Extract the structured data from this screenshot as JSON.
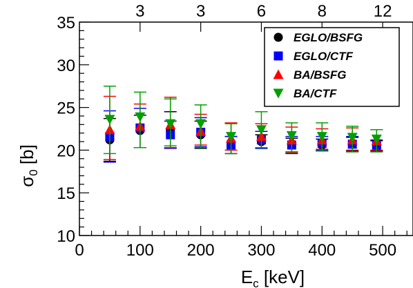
{
  "chart_data": {
    "type": "scatter",
    "title": "",
    "xlabel_main": "E",
    "xlabel_sub": "c",
    "xlabel_unit": " [keV]",
    "ylabel_main": "σ",
    "ylabel_sub": "0",
    "ylabel_unit": " [b]",
    "xlim": [
      0,
      550
    ],
    "ylim": [
      10,
      35
    ],
    "x_ticks": [
      0,
      100,
      200,
      300,
      400,
      500
    ],
    "y_ticks": [
      10,
      15,
      20,
      25,
      30,
      35
    ],
    "top_ticks": [
      {
        "x": 100,
        "label": "3"
      },
      {
        "x": 200,
        "label": "3"
      },
      {
        "x": 300,
        "label": "6"
      },
      {
        "x": 400,
        "label": "8"
      },
      {
        "x": 500,
        "label": "12"
      }
    ],
    "grid": false,
    "legend_position": "top-right",
    "series": [
      {
        "name": "EGLO/BSFG",
        "color": "#000000",
        "marker": "circle",
        "x": [
          50,
          100,
          150,
          200,
          250,
          300,
          350,
          400,
          450,
          490
        ],
        "y": [
          21.2,
          22.3,
          22.3,
          21.8,
          20.6,
          21.0,
          20.6,
          20.6,
          20.7,
          20.5
        ],
        "err_low": [
          2.5,
          2.0,
          2.0,
          1.6,
          1.0,
          0.8,
          0.8,
          0.7,
          0.8,
          0.6
        ],
        "err_high": [
          2.5,
          1.8,
          2.2,
          1.6,
          1.0,
          0.8,
          0.8,
          0.7,
          0.8,
          0.6
        ]
      },
      {
        "name": "EGLO/CTF",
        "color": "#0000ff",
        "marker": "square",
        "x": [
          50,
          100,
          150,
          200,
          250,
          300,
          350,
          400,
          450,
          490
        ],
        "y": [
          21.6,
          22.6,
          21.8,
          22.1,
          20.6,
          21.2,
          20.6,
          20.8,
          20.7,
          20.5
        ],
        "err_low": [
          3.0,
          2.3,
          1.6,
          1.7,
          1.0,
          1.0,
          1.0,
          0.8,
          0.9,
          0.7
        ],
        "err_high": [
          3.0,
          2.3,
          1.6,
          1.7,
          1.0,
          1.0,
          1.0,
          0.8,
          0.9,
          0.7
        ]
      },
      {
        "name": "BA/BSFG",
        "color": "#ff0000",
        "marker": "triangle-up",
        "x": [
          50,
          100,
          150,
          200,
          250,
          300,
          350,
          400,
          450,
          490
        ],
        "y": [
          22.4,
          22.8,
          23.0,
          22.2,
          21.4,
          21.6,
          21.2,
          21.2,
          21.2,
          21.1
        ],
        "err_low": [
          3.5,
          2.5,
          2.7,
          1.6,
          1.4,
          1.3,
          1.5,
          1.1,
          1.2,
          1.1
        ],
        "err_high": [
          3.9,
          2.6,
          3.2,
          2.0,
          1.8,
          1.5,
          1.5,
          1.3,
          1.4,
          1.3
        ]
      },
      {
        "name": "BA/CTF",
        "color": "#00a000",
        "marker": "triangle-down",
        "x": [
          50,
          100,
          150,
          200,
          250,
          300,
          350,
          400,
          450,
          490
        ],
        "y": [
          23.6,
          23.9,
          23.1,
          23.1,
          21.6,
          22.4,
          21.7,
          21.6,
          21.5,
          21.3
        ],
        "err_low": [
          4.0,
          3.6,
          2.6,
          2.8,
          2.0,
          2.1,
          1.9,
          1.7,
          1.7,
          1.5
        ],
        "err_high": [
          3.9,
          2.9,
          2.9,
          2.2,
          1.5,
          2.1,
          1.5,
          1.6,
          1.3,
          1.1
        ]
      }
    ]
  }
}
